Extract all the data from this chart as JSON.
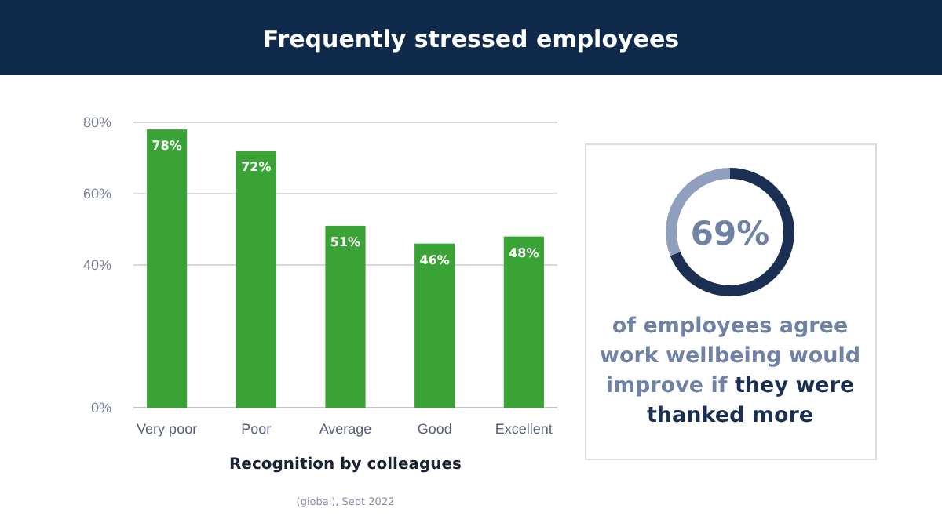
{
  "chart_data": [
    {
      "type": "bar",
      "title": "Frequently stressed employees",
      "xlabel": "Recognition by colleagues",
      "categories": [
        "Very poor",
        "Poor",
        "Average",
        "Good",
        "Excellent"
      ],
      "values": [
        78,
        72,
        51,
        46,
        48
      ],
      "value_labels": [
        "78%",
        "72%",
        "51%",
        "46%",
        "48%"
      ],
      "color": "#3aa335",
      "ylim": [
        0,
        80
      ],
      "yticks": [
        {
          "value": 0,
          "label": "0%"
        },
        {
          "value": 40,
          "label": "40%"
        },
        {
          "value": 60,
          "label": "60%"
        },
        {
          "value": 80,
          "label": "80%"
        }
      ],
      "grid": "y",
      "annotations": [
        "(global), Sept 2022"
      ]
    },
    {
      "type": "donut",
      "categories": [
        null,
        null
      ],
      "values": [
        69,
        31
      ],
      "colors": [
        "#1b2f52",
        "#8f9fbd"
      ],
      "value_labels": [
        "69%",
        null
      ],
      "annotations": [
        "of employees agree work wellbeing would improve if",
        "they were thanked more"
      ]
    }
  ]
}
